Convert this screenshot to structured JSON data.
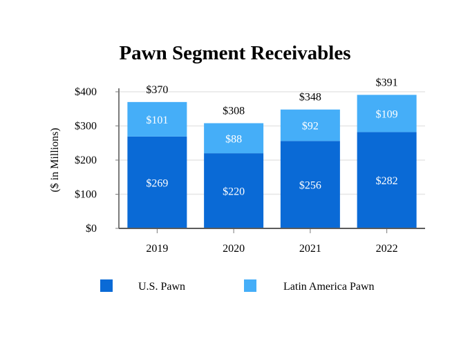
{
  "chart_data": {
    "type": "bar",
    "stacked": true,
    "title": "Pawn Segment Receivables",
    "xlabel": "",
    "ylabel": "($ in Millions)",
    "categories": [
      "2019",
      "2020",
      "2021",
      "2022"
    ],
    "series": [
      {
        "name": "U.S. Pawn",
        "values": [
          269,
          220,
          256,
          282
        ],
        "labels": [
          "$269",
          "$220",
          "$256",
          "$282"
        ],
        "color": "#0a6ad6"
      },
      {
        "name": "Latin America Pawn",
        "values": [
          101,
          88,
          92,
          109
        ],
        "labels": [
          "$101",
          "$88",
          "$92",
          "$109"
        ],
        "color": "#45aef8"
      }
    ],
    "totals": [
      370,
      308,
      348,
      391
    ],
    "total_labels": [
      "$370",
      "$308",
      "$348",
      "$391"
    ],
    "ylim": [
      0,
      400
    ],
    "yticks": [
      0,
      100,
      200,
      300,
      400
    ],
    "ytick_labels": [
      "$0",
      "$100",
      "$200",
      "$300",
      "$400"
    ],
    "grid": true,
    "legend_position": "bottom"
  }
}
